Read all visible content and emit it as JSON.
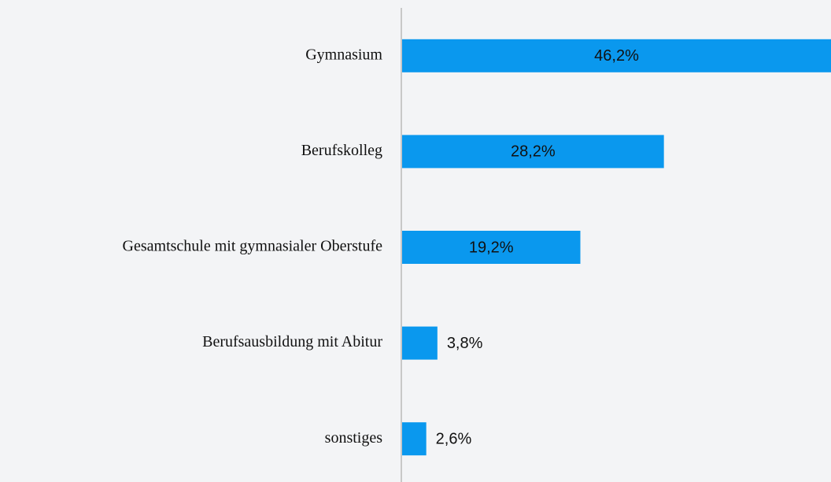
{
  "chart_data": {
    "type": "bar",
    "orientation": "horizontal",
    "categories": [
      "Gymnasium",
      "Berufskolleg",
      "Gesamtschule mit gymnasialer Oberstufe",
      "Berufsausbildung mit Abitur",
      "sonstiges"
    ],
    "values": [
      46.2,
      28.2,
      19.2,
      3.8,
      2.6
    ],
    "value_labels": [
      "46,2%",
      "28,2%",
      "19,2%",
      "3,8%",
      "2,6%"
    ],
    "color": "#0a98ee",
    "xlim": [
      0,
      46.2
    ]
  }
}
